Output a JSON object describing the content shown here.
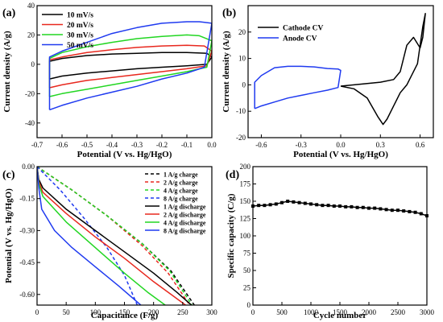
{
  "chart_data": [
    {
      "panel_label": "(a)",
      "type": "line",
      "xlabel": "Potential (V vs. Hg/HgO)",
      "ylabel": "Current density (A/g)",
      "xlim": [
        -0.7,
        0.0
      ],
      "ylim": [
        -50,
        40
      ],
      "xticks": [
        -0.7,
        -0.6,
        -0.5,
        -0.4,
        -0.3,
        -0.2,
        -0.1,
        0.0
      ],
      "xtick_labels": [
        "-0.7",
        "-0.6",
        "-0.5",
        "-0.4",
        "-0.3",
        "-0.2",
        "-0.1",
        "0.0"
      ],
      "yticks": [
        -40,
        -20,
        0,
        20,
        40
      ],
      "ytick_labels": [
        "-40",
        "-20",
        "0",
        "20",
        "40"
      ],
      "legend_position": "top-left",
      "series": [
        {
          "name": "10 mV/s",
          "color": "#000000",
          "x": [
            -0.65,
            -0.6,
            -0.5,
            -0.4,
            -0.3,
            -0.2,
            -0.1,
            -0.02,
            0.0,
            -0.02,
            -0.1,
            -0.2,
            -0.3,
            -0.4,
            -0.5,
            -0.6,
            -0.65,
            -0.65
          ],
          "y": [
            -10,
            -8,
            -6,
            -4.5,
            -3,
            -2,
            -1,
            0,
            5,
            7.5,
            8,
            8,
            7.5,
            7,
            6,
            4,
            2,
            -10
          ]
        },
        {
          "name": "20 mV/s",
          "color": "#e8281e",
          "x": [
            -0.65,
            -0.6,
            -0.5,
            -0.4,
            -0.3,
            -0.2,
            -0.1,
            -0.02,
            0.0,
            -0.03,
            -0.1,
            -0.2,
            -0.3,
            -0.4,
            -0.5,
            -0.6,
            -0.65,
            -0.65
          ],
          "y": [
            -16,
            -14,
            -11,
            -9,
            -7,
            -5,
            -3,
            -1,
            9,
            12.5,
            13,
            12.5,
            11.5,
            10,
            8,
            5,
            3,
            -16
          ]
        },
        {
          "name": "30 mV/s",
          "color": "#22d622",
          "x": [
            -0.65,
            -0.6,
            -0.5,
            -0.4,
            -0.3,
            -0.2,
            -0.1,
            -0.02,
            0.0,
            -0.05,
            -0.1,
            -0.2,
            -0.3,
            -0.4,
            -0.5,
            -0.6,
            -0.65,
            -0.65
          ],
          "y": [
            -22,
            -20,
            -17,
            -14,
            -11,
            -8,
            -5,
            -2,
            16,
            19.5,
            20,
            19,
            17.5,
            15,
            12,
            8,
            4,
            -22
          ]
        },
        {
          "name": "50 mV/s",
          "color": "#1f3af0",
          "x": [
            -0.65,
            -0.6,
            -0.5,
            -0.4,
            -0.3,
            -0.2,
            -0.1,
            -0.03,
            0.0,
            -0.05,
            -0.1,
            -0.2,
            -0.3,
            -0.4,
            -0.5,
            -0.6,
            -0.65,
            -0.65
          ],
          "y": [
            -31,
            -28,
            -23,
            -19,
            -15,
            -10,
            -6,
            -2,
            28,
            29,
            29,
            28,
            25,
            21,
            15,
            9,
            5,
            -31
          ]
        }
      ]
    },
    {
      "panel_label": "(b)",
      "type": "line",
      "xlabel": "Potential (V vs. Hg/HgO)",
      "ylabel": "Current density (A/g)",
      "xlim": [
        -0.7,
        0.7
      ],
      "ylim": [
        -20,
        30
      ],
      "xticks": [
        -0.6,
        -0.3,
        0.0,
        0.3,
        0.6
      ],
      "xtick_labels": [
        "-0.6",
        "-0.3",
        "0.0",
        "0.3",
        "0.6"
      ],
      "yticks": [
        -20,
        -10,
        0,
        10,
        20
      ],
      "ytick_labels": [
        "-20",
        "-10",
        "0",
        "10",
        "20"
      ],
      "legend_position": "top-left",
      "series": [
        {
          "name": "Cathode CV",
          "color": "#000000",
          "x": [
            0.0,
            0.1,
            0.2,
            0.3,
            0.4,
            0.45,
            0.5,
            0.55,
            0.6,
            0.62,
            0.64,
            0.62,
            0.58,
            0.5,
            0.45,
            0.4,
            0.35,
            0.32,
            0.28,
            0.2,
            0.1,
            0.0
          ],
          "y": [
            -0.5,
            0,
            0.5,
            1,
            2,
            5,
            15,
            18,
            14,
            18,
            27,
            22,
            8,
            0,
            -3,
            -8,
            -13,
            -15,
            -12,
            -5,
            -1.5,
            -0.5
          ]
        },
        {
          "name": "Anode  CV",
          "color": "#1f3af0",
          "x": [
            -0.65,
            -0.6,
            -0.5,
            -0.4,
            -0.3,
            -0.2,
            -0.1,
            -0.02,
            0.0,
            -0.02,
            -0.1,
            -0.2,
            -0.3,
            -0.4,
            -0.5,
            -0.6,
            -0.65,
            -0.65
          ],
          "y": [
            -9,
            -8,
            -6.5,
            -5,
            -4,
            -3,
            -2,
            -1,
            5.5,
            6,
            6.2,
            6.8,
            7,
            7,
            6.5,
            3.5,
            1,
            -9
          ]
        }
      ]
    },
    {
      "panel_label": "(c)",
      "type": "line",
      "xlabel": "Capacitance (F/g)",
      "ylabel": "Potential (V vs. Hg/HgO)",
      "xlim": [
        0,
        300
      ],
      "ylim": [
        -0.65,
        0.0
      ],
      "xticks": [
        0,
        50,
        100,
        150,
        200,
        250,
        300
      ],
      "xtick_labels": [
        "0",
        "50",
        "100",
        "150",
        "200",
        "250",
        "300"
      ],
      "yticks": [
        0.0,
        -0.15,
        -0.3,
        -0.45,
        -0.6
      ],
      "ytick_labels": [
        "0.00",
        "-0.15",
        "-0.30",
        "-0.45",
        "-0.60"
      ],
      "legend_position": "top-right",
      "series": [
        {
          "name": "1 A/g charge",
          "color": "#000000",
          "dashed": true,
          "x": [
            0,
            60,
            120,
            180,
            230,
            270
          ],
          "y": [
            0,
            -0.11,
            -0.23,
            -0.36,
            -0.49,
            -0.65
          ]
        },
        {
          "name": "2 A/g charge",
          "color": "#e8281e",
          "dashed": true,
          "x": [
            0,
            60,
            120,
            180,
            225,
            262
          ],
          "y": [
            0,
            -0.11,
            -0.23,
            -0.37,
            -0.5,
            -0.65
          ]
        },
        {
          "name": "4 A/g charge",
          "color": "#22d622",
          "dashed": true,
          "x": [
            0,
            60,
            120,
            180,
            228,
            266
          ],
          "y": [
            0,
            -0.11,
            -0.23,
            -0.36,
            -0.49,
            -0.65
          ]
        },
        {
          "name": "8 A/g charge",
          "color": "#1f3af0",
          "dashed": true,
          "x": [
            0,
            40,
            80,
            120,
            150,
            172
          ],
          "y": [
            0,
            -0.11,
            -0.24,
            -0.38,
            -0.51,
            -0.65
          ]
        },
        {
          "name": "1 A/g discharge",
          "color": "#000000",
          "dashed": false,
          "x": [
            0,
            3,
            10,
            50,
            100,
            150,
            200,
            240,
            265
          ],
          "y": [
            0,
            -0.06,
            -0.1,
            -0.2,
            -0.3,
            -0.4,
            -0.5,
            -0.59,
            -0.65
          ]
        },
        {
          "name": "2 A/g discharge",
          "color": "#e8281e",
          "dashed": false,
          "x": [
            0,
            3,
            10,
            50,
            100,
            150,
            200,
            235,
            255
          ],
          "y": [
            0,
            -0.07,
            -0.12,
            -0.22,
            -0.33,
            -0.43,
            -0.54,
            -0.61,
            -0.65
          ]
        },
        {
          "name": "4 A/g discharge",
          "color": "#22d622",
          "dashed": false,
          "x": [
            0,
            3,
            10,
            50,
            100,
            150,
            190,
            220
          ],
          "y": [
            0,
            -0.08,
            -0.14,
            -0.26,
            -0.38,
            -0.5,
            -0.59,
            -0.65
          ]
        },
        {
          "name": "8 A/g discharge",
          "color": "#1f3af0",
          "dashed": false,
          "x": [
            0,
            3,
            8,
            30,
            60,
            100,
            140,
            178
          ],
          "y": [
            0,
            -0.1,
            -0.2,
            -0.3,
            -0.38,
            -0.47,
            -0.56,
            -0.65
          ]
        }
      ]
    },
    {
      "panel_label": "(d)",
      "type": "line",
      "xlabel": "Cycle number",
      "ylabel": "Specific capacity  (C/g)",
      "xlim": [
        0,
        3000
      ],
      "ylim": [
        0,
        200
      ],
      "xticks": [
        0,
        500,
        1000,
        1500,
        2000,
        2500,
        3000
      ],
      "xtick_labels": [
        "0",
        "500",
        "1000",
        "1500",
        "2000",
        "2500",
        "3000"
      ],
      "yticks": [
        0,
        25,
        50,
        75,
        100,
        125,
        150,
        175,
        200
      ],
      "ytick_labels": [
        "0",
        "25",
        "50",
        "75",
        "100",
        "125",
        "150",
        "175",
        "200"
      ],
      "series": [
        {
          "name": "",
          "color": "#000000",
          "marker": "square",
          "x": [
            0,
            100,
            200,
            300,
            400,
            500,
            600,
            700,
            800,
            900,
            1000,
            1100,
            1200,
            1300,
            1400,
            1500,
            1600,
            1700,
            1800,
            1900,
            2000,
            2100,
            2200,
            2300,
            2400,
            2500,
            2600,
            2700,
            2800,
            2900,
            3000
          ],
          "y": [
            143,
            144,
            144,
            145,
            146,
            148,
            150,
            149,
            148,
            147,
            146,
            145,
            144,
            144,
            143,
            143,
            142,
            142,
            141,
            141,
            140,
            140,
            139,
            138,
            137,
            137,
            136,
            135,
            134,
            132,
            129
          ]
        }
      ]
    }
  ]
}
